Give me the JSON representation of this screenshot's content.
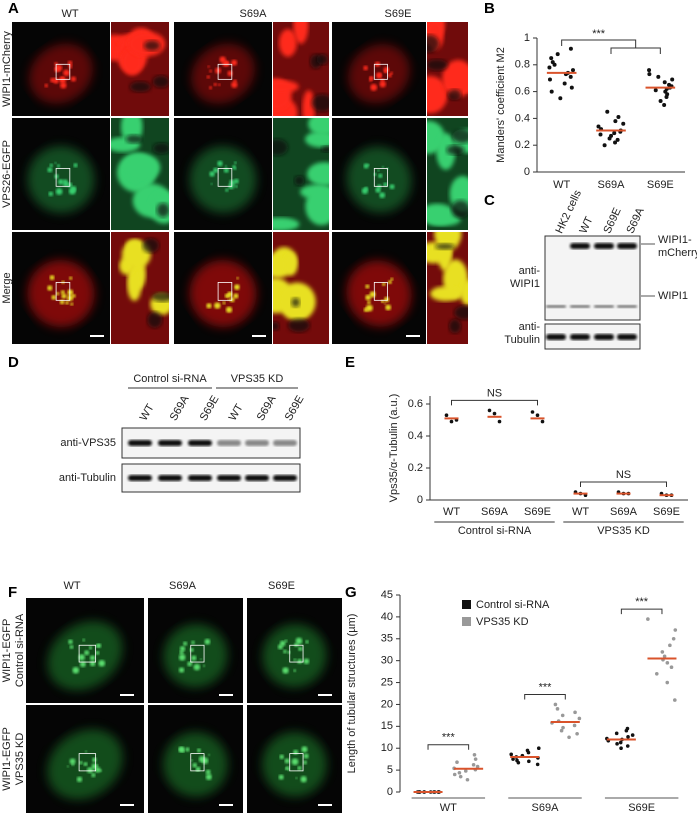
{
  "panel_a": {
    "label": "A",
    "columns": [
      "WT",
      "S69A",
      "S69E"
    ],
    "rows": [
      "WIPI1-mCherry",
      "VPS26-EGFP",
      "Merge"
    ]
  },
  "panel_c": {
    "label": "C",
    "lanes": [
      "HK2 cells",
      "WT",
      "S69E",
      "S69A"
    ],
    "left_labels": [
      [
        "anti-",
        "WIPI1"
      ],
      [
        "anti-",
        "Tubulin"
      ]
    ],
    "right_labels": [
      [
        "WIPI1-",
        "mCherry"
      ],
      [
        "WIPI1"
      ]
    ]
  },
  "panel_d": {
    "label": "D",
    "groups": [
      "Control si-RNA",
      "VPS35 KD"
    ],
    "lanes": [
      "WT",
      "S69A",
      "S69E",
      "WT",
      "S69A",
      "S69E"
    ],
    "blots": [
      "anti-VPS35",
      "anti-Tubulin"
    ]
  },
  "panel_f": {
    "label": "F",
    "columns": [
      "WT",
      "S69A",
      "S69E"
    ],
    "rows": [
      [
        "WIPI1-EGFP",
        "Control si-RNA"
      ],
      [
        "WIPI1-EGFP",
        "VPS35 KD"
      ]
    ]
  },
  "chart_data": [
    {
      "type": "strip",
      "label": "B",
      "ylabel": "Manders' coefficient M2",
      "categories": [
        "WT",
        "S69A",
        "S69E"
      ],
      "values": [
        [
          0.92,
          0.88,
          0.85,
          0.82,
          0.8,
          0.78,
          0.76,
          0.74,
          0.73,
          0.71,
          0.69,
          0.66,
          0.63,
          0.6,
          0.55
        ],
        [
          0.45,
          0.41,
          0.38,
          0.36,
          0.34,
          0.32,
          0.31,
          0.3,
          0.29,
          0.28,
          0.27,
          0.25,
          0.24,
          0.22,
          0.2
        ],
        [
          0.76,
          0.73,
          0.71,
          0.69,
          0.67,
          0.65,
          0.64,
          0.63,
          0.62,
          0.61,
          0.6,
          0.58,
          0.56,
          0.53,
          0.5
        ]
      ],
      "means": [
        0.74,
        0.31,
        0.63
      ],
      "color": "#111111",
      "mean_color": "#d9532b",
      "ylim": [
        0,
        1
      ],
      "yticks": [
        0,
        0.2,
        0.4,
        0.6,
        0.8,
        1
      ],
      "annotations": [
        {
          "text": "***"
        }
      ]
    },
    {
      "type": "grouped_strip",
      "label": "E",
      "ylabel": "Vps35/α-Tubulin (a.u.)",
      "categories": [
        "WT",
        "S69A",
        "S69E",
        "WT",
        "S69A",
        "S69E"
      ],
      "groups": [
        "Control si-RNA",
        "VPS35 KD"
      ],
      "values": [
        [
          0.53,
          0.49,
          0.5
        ],
        [
          0.56,
          0.54,
          0.49
        ],
        [
          0.55,
          0.53,
          0.49
        ],
        [
          0.05,
          0.04,
          0.03
        ],
        [
          0.05,
          0.04,
          0.04
        ],
        [
          0.04,
          0.03,
          0.03
        ]
      ],
      "means": [
        0.51,
        0.52,
        0.51,
        0.04,
        0.04,
        0.03
      ],
      "color": "#111111",
      "mean_color": "#d9532b",
      "ylim": [
        0,
        0.65
      ],
      "yticks": [
        0,
        0.2,
        0.4,
        0.6
      ],
      "annotations": [
        {
          "text": "NS"
        },
        {
          "text": "NS"
        }
      ]
    },
    {
      "type": "paired_strip",
      "label": "G",
      "ylabel": "Length of tubular structures (µm)",
      "categories": [
        "WT",
        "S69A",
        "S69E"
      ],
      "series": [
        {
          "name": "Control si-RNA",
          "color": "#111111",
          "values": [
            [
              0,
              0,
              0,
              0,
              0,
              0,
              0,
              0,
              0,
              0,
              0,
              0
            ],
            [
              10,
              9.5,
              9,
              8.6,
              8.3,
              8,
              7.8,
              7.5,
              7.2,
              7,
              6.7,
              6.3
            ],
            [
              14.5,
              14,
              13.4,
              13,
              12.6,
              12.2,
              12,
              11.7,
              11.3,
              11,
              10.5,
              10
            ]
          ],
          "means": [
            0,
            8,
            12
          ]
        },
        {
          "name": "VPS35 KD",
          "color": "#999999",
          "values": [
            [
              8.5,
              7.5,
              6.8,
              6.2,
              5.8,
              5.4,
              5.1,
              4.8,
              4.4,
              4,
              3.5,
              2.8
            ],
            [
              20,
              19,
              18.2,
              17.5,
              16.8,
              16.2,
              15.8,
              15.2,
              14.7,
              14,
              13.3,
              12.5
            ],
            [
              39.5,
              37,
              35,
              33.5,
              32,
              31,
              30.2,
              29.5,
              28.5,
              27,
              25,
              21
            ]
          ],
          "means": [
            5.3,
            16,
            30.5
          ]
        }
      ],
      "mean_color": "#d9532b",
      "ylim": [
        0,
        45
      ],
      "yticks": [
        0,
        5,
        10,
        15,
        20,
        25,
        30,
        35,
        40,
        45
      ],
      "annotations": [
        {
          "text": "***"
        },
        {
          "text": "***"
        },
        {
          "text": "***"
        }
      ]
    }
  ]
}
